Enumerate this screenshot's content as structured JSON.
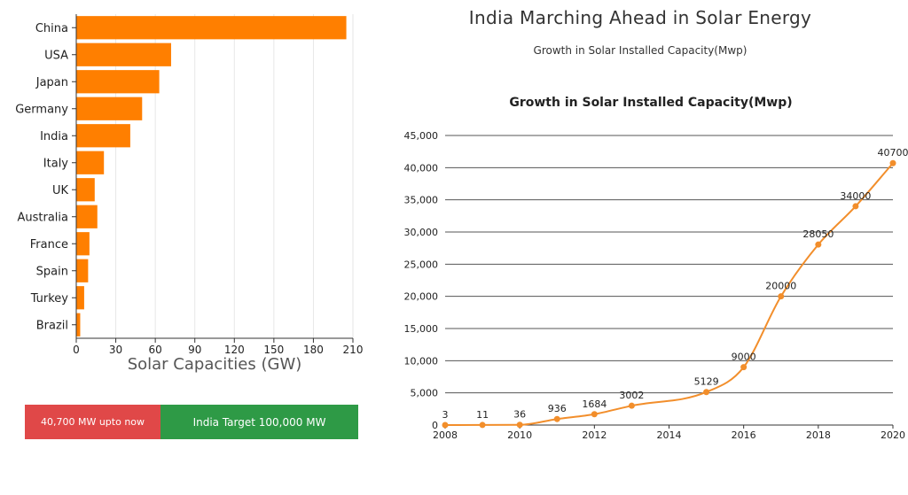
{
  "page": {
    "title": "India Marching Ahead in Solar Energy",
    "subtitle": "Growth in Solar Installed Capacity(Mwp)"
  },
  "progress": {
    "current_label": "40,700 MW upto now",
    "target_label": "India Target 100,000 MW",
    "current_mw": 40700,
    "target_mw": 100000,
    "current_color": "#e04848",
    "target_color": "#2e9a46"
  },
  "chart_data": [
    {
      "type": "bar",
      "orientation": "horizontal",
      "categories": [
        "China",
        "USA",
        "Japan",
        "Germany",
        "India",
        "Italy",
        "UK",
        "Australia",
        "France",
        "Spain",
        "Turkey",
        "Brazil"
      ],
      "values": [
        205,
        72,
        63,
        50,
        41,
        21,
        14,
        16,
        10,
        9,
        6,
        3
      ],
      "xlabel": "Solar Capacities (GW)",
      "xlim": [
        0,
        210
      ],
      "xticks": [
        "0",
        "30",
        "60",
        "90",
        "120",
        "150",
        "180",
        "210"
      ],
      "grid": true,
      "color": "#ff7f00"
    },
    {
      "type": "line",
      "title": "Growth in Solar Installed Capacity(Mwp)",
      "x": [
        2008,
        2009,
        2010,
        2011,
        2012,
        2013,
        2015,
        2016,
        2017,
        2018,
        2019,
        2020
      ],
      "y": [
        3,
        11,
        36,
        936,
        1684,
        3002,
        5129,
        9000,
        20000,
        28050,
        34000,
        40700
      ],
      "data_labels": [
        "3",
        "11",
        "36",
        "936",
        "1684",
        "3002",
        "5129",
        "9000",
        "20000",
        "28050",
        "34000",
        "40700"
      ],
      "xlim": [
        2008,
        2020
      ],
      "xticks": [
        "2008",
        "2010",
        "2012",
        "2014",
        "2016",
        "2018",
        "2020"
      ],
      "ylim": [
        0,
        45000
      ],
      "yticks": [
        "0",
        "5,000",
        "10,000",
        "15,000",
        "20,000",
        "25,000",
        "30,000",
        "35,000",
        "40,000",
        "45,000"
      ],
      "grid": true,
      "color": "#f28e2b"
    }
  ]
}
